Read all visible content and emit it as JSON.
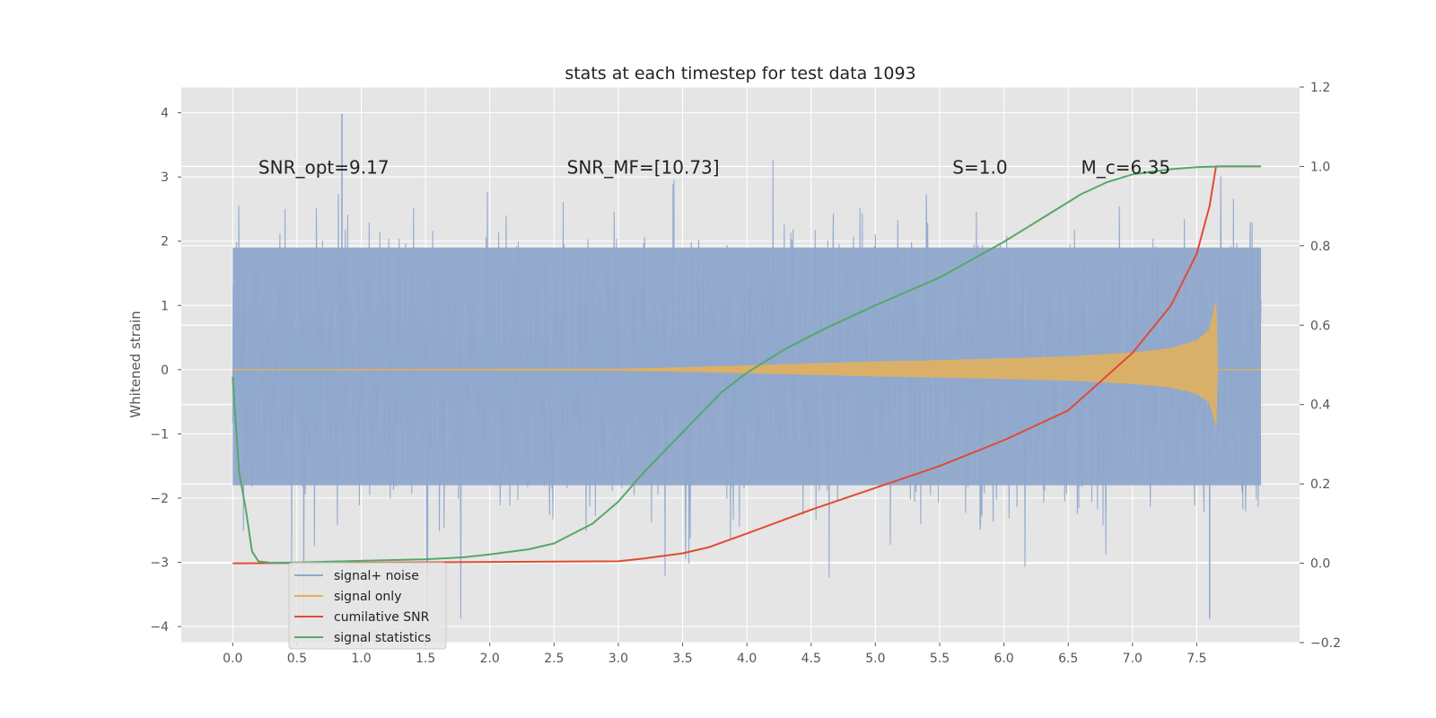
{
  "chart_data": {
    "type": "line",
    "title": "stats at each timestep for test data 1093",
    "xlabel": "",
    "ylabel": "Whitened strain",
    "y2label": "",
    "xlim": [
      -0.4,
      8.3
    ],
    "ylim": [
      -4.25,
      4.4
    ],
    "y2lim": [
      -0.2,
      1.2
    ],
    "x_ticks": [
      "0.0",
      "0.5",
      "1.0",
      "1.5",
      "2.0",
      "2.5",
      "3.0",
      "3.5",
      "4.0",
      "4.5",
      "5.0",
      "5.5",
      "6.0",
      "6.5",
      "7.0",
      "7.5"
    ],
    "y_ticks": [
      "−4",
      "−3",
      "−2",
      "−1",
      "0",
      "1",
      "2",
      "3",
      "4"
    ],
    "y2_ticks": [
      "−0.2",
      "0.0",
      "0.2",
      "0.4",
      "0.6",
      "0.8",
      "1.0",
      "1.2"
    ],
    "grid": true,
    "legend_position": "lower-left",
    "annotations": [
      {
        "text": "SNR_opt=9.17",
        "x": 0.2,
        "y": 3.15
      },
      {
        "text": "SNR_MF=[10.73]",
        "x": 2.6,
        "y": 3.15
      },
      {
        "text": "S=1.0",
        "x": 5.6,
        "y": 3.15
      },
      {
        "text": "M_c=6.35",
        "x": 6.6,
        "y": 3.15
      }
    ],
    "series": [
      {
        "name": "signal+ noise",
        "color": "#8fa8cc",
        "axis": "left",
        "kind": "noise",
        "x_range": [
          0.0,
          8.0
        ],
        "typical_band": [
          -1.8,
          1.9
        ],
        "min": -3.88,
        "max": 3.98
      },
      {
        "name": "signal only",
        "color": "#e2b05c",
        "axis": "left",
        "kind": "chirp",
        "x": [
          0.0,
          3.0,
          3.5,
          4.0,
          4.5,
          5.0,
          5.5,
          6.0,
          6.5,
          7.0,
          7.3,
          7.5,
          7.6,
          7.65,
          7.66
        ],
        "envelope": [
          0.0,
          0.01,
          0.03,
          0.06,
          0.09,
          0.12,
          0.14,
          0.17,
          0.2,
          0.26,
          0.33,
          0.45,
          0.62,
          1.05,
          0.0
        ]
      },
      {
        "name": "cumilative SNR",
        "color": "#e24a33",
        "axis": "right",
        "x": [
          0.0,
          3.0,
          3.2,
          3.5,
          3.7,
          4.0,
          4.5,
          5.0,
          5.5,
          6.0,
          6.5,
          7.0,
          7.3,
          7.5,
          7.6,
          7.65,
          8.0
        ],
        "values": [
          0.0,
          0.005,
          0.012,
          0.025,
          0.04,
          0.075,
          0.135,
          0.19,
          0.245,
          0.31,
          0.385,
          0.53,
          0.65,
          0.78,
          0.9,
          1.0,
          1.0
        ]
      },
      {
        "name": "signal statistics",
        "color": "#55a868",
        "axis": "right",
        "x": [
          0.0,
          0.05,
          0.1,
          0.15,
          0.2,
          0.3,
          0.5,
          1.0,
          1.5,
          1.8,
          2.0,
          2.3,
          2.5,
          2.8,
          3.0,
          3.2,
          3.5,
          3.8,
          4.0,
          4.3,
          4.6,
          5.0,
          5.5,
          6.0,
          6.3,
          6.6,
          6.8,
          7.0,
          7.3,
          7.5,
          7.7,
          8.0
        ],
        "values": [
          0.47,
          0.23,
          0.14,
          0.03,
          0.005,
          0.001,
          0.002,
          0.006,
          0.01,
          0.015,
          0.022,
          0.035,
          0.05,
          0.1,
          0.155,
          0.23,
          0.33,
          0.43,
          0.48,
          0.54,
          0.59,
          0.65,
          0.72,
          0.81,
          0.87,
          0.93,
          0.96,
          0.98,
          0.993,
          0.998,
          1.0,
          1.0
        ]
      }
    ]
  },
  "colors": {
    "plot_background": "#e5e5e5",
    "grid": "#ffffff"
  }
}
